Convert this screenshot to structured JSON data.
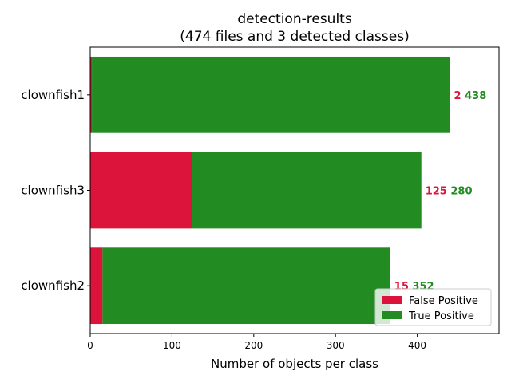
{
  "chart_data": {
    "type": "bar",
    "orientation": "horizontal",
    "stacked": true,
    "title_line1": "detection-results",
    "title_line2": "(474 files and 3 detected classes)",
    "xlabel": "Number of objects per class",
    "ylabel": "",
    "categories": [
      "clownfish1",
      "clownfish3",
      "clownfish2"
    ],
    "series": [
      {
        "name": "False Positive",
        "color": "#dc143c",
        "values": [
          2,
          125,
          15
        ]
      },
      {
        "name": "True Positive",
        "color": "#228b22",
        "values": [
          438,
          280,
          352
        ]
      }
    ],
    "xlim": [
      0,
      500
    ],
    "xticks": [
      0,
      100,
      200,
      300,
      400
    ],
    "grid": false,
    "legend_position": "lower-right"
  }
}
